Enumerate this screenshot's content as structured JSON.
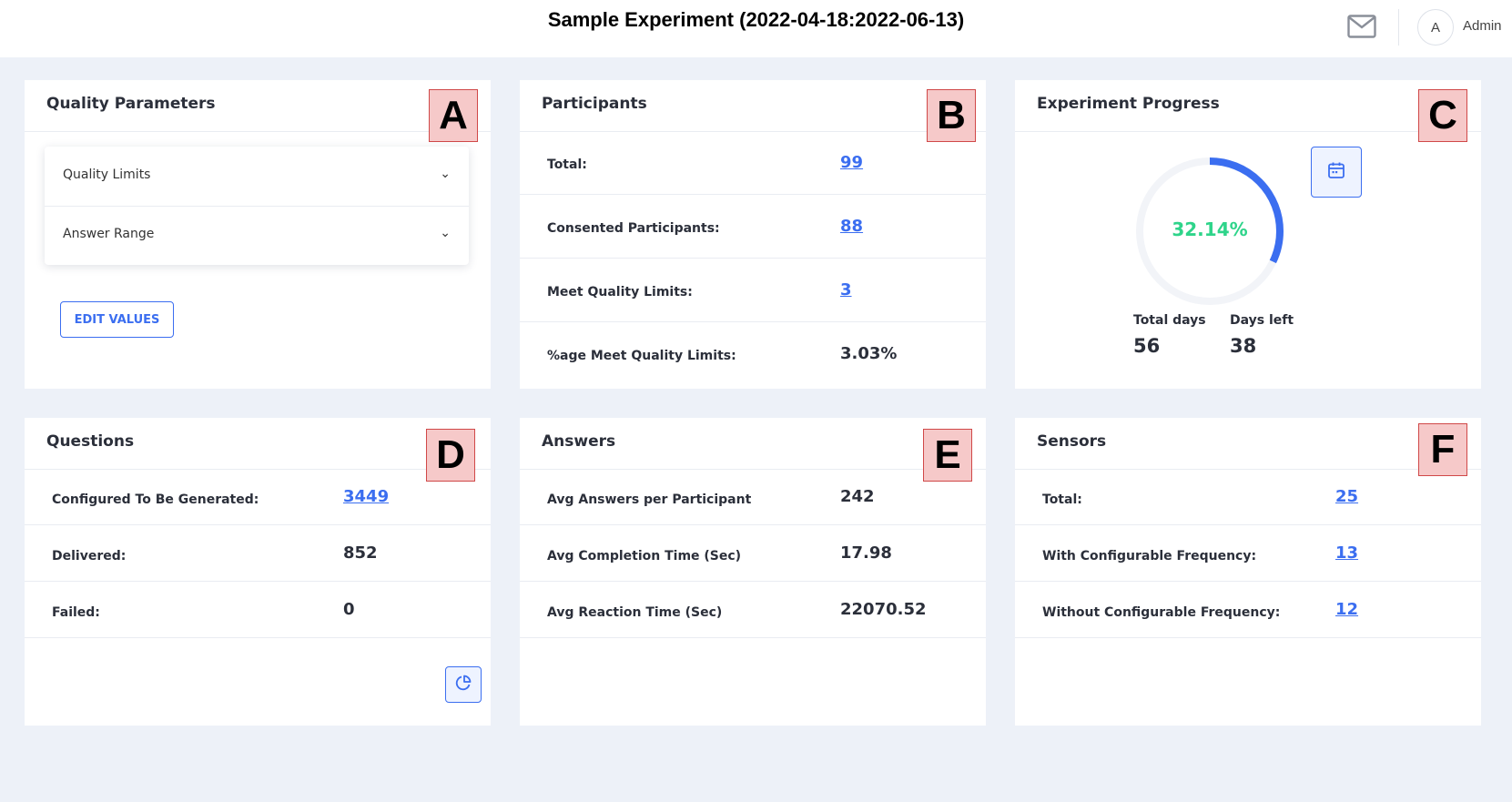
{
  "header": {
    "title": "Sample Experiment (2022-04-18:2022-06-13)",
    "avatar_initial": "A",
    "user_name": "Admin"
  },
  "cards": {
    "quality": {
      "title": "Quality Parameters",
      "tag": "A",
      "accordion": [
        {
          "label": "Quality Limits"
        },
        {
          "label": "Answer Range"
        }
      ],
      "edit_button": "EDIT VALUES"
    },
    "participants": {
      "title": "Participants",
      "tag": "B",
      "rows": [
        {
          "label": "Total:",
          "value": "99",
          "link": true
        },
        {
          "label": "Consented Participants:",
          "value": "88",
          "link": true
        },
        {
          "label": "Meet Quality Limits:",
          "value": "3",
          "link": true
        },
        {
          "label": "%age Meet Quality Limits:",
          "value": "3.03%",
          "link": false
        }
      ]
    },
    "progress": {
      "title": "Experiment Progress",
      "tag": "C",
      "percent_label": "32.14%",
      "progress_fraction": 0.3214,
      "total_days_label": "Total days",
      "total_days": "56",
      "days_left_label": "Days left",
      "days_left": "38"
    },
    "questions": {
      "title": "Questions",
      "tag": "D",
      "rows": [
        {
          "label": "Configured To Be Generated:",
          "value": "3449",
          "link": true
        },
        {
          "label": "Delivered:",
          "value": "852",
          "link": false
        },
        {
          "label": "Failed:",
          "value": "0",
          "link": false
        }
      ]
    },
    "answers": {
      "title": "Answers",
      "tag": "E",
      "rows": [
        {
          "label": "Avg Answers per Participant",
          "value": "242"
        },
        {
          "label": "Avg Completion Time (Sec)",
          "value": "17.98"
        },
        {
          "label": "Avg Reaction Time (Sec)",
          "value": "22070.52"
        }
      ]
    },
    "sensors": {
      "title": "Sensors",
      "tag": "F",
      "rows": [
        {
          "label": "Total:",
          "value": "25",
          "link": true
        },
        {
          "label": "With Configurable Frequency:",
          "value": "13",
          "link": true
        },
        {
          "label": "Without Configurable Frequency:",
          "value": "12",
          "link": true
        }
      ]
    }
  },
  "colors": {
    "accent": "#3b6ef0",
    "progress_text": "#2ed48a",
    "background": "#edf1f8",
    "tag_fill": "#f6c9c9",
    "tag_border": "#d04848"
  },
  "icons": {
    "mail": "mail-icon",
    "calendar": "calendar-icon",
    "chart": "pie-chart-icon",
    "chevron": "chevron-down-icon"
  }
}
